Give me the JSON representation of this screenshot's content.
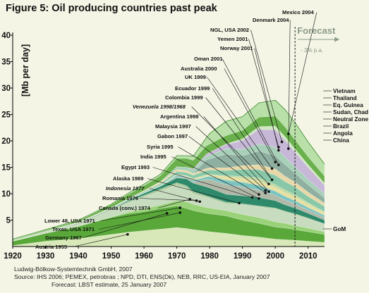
{
  "figure": {
    "title": "Figure 5: Oil producing countries past peak"
  },
  "chart_data": {
    "type": "area",
    "stacked": true,
    "title": "Figure 5: Oil producing countries past peak",
    "ylabel": "[Mb per day]",
    "xlabel": "",
    "xlim": [
      1920,
      2015
    ],
    "ylim": [
      0,
      40
    ],
    "x_ticks": [
      1920,
      1930,
      1940,
      1950,
      1960,
      1970,
      1980,
      1990,
      2000,
      2010
    ],
    "y_ticks": [
      5,
      10,
      15,
      20,
      25,
      30,
      35,
      40
    ],
    "grid": false,
    "forecast": {
      "label": "Forecast",
      "start_year": 2006,
      "decline_label": "- 3% p.a."
    },
    "x": [
      1920,
      1930,
      1940,
      1950,
      1955,
      1960,
      1965,
      1970,
      1973,
      1975,
      1979,
      1980,
      1985,
      1990,
      1995,
      2000,
      2003,
      2006,
      2010,
      2015
    ],
    "peak_annotations": [
      {
        "label": "Mexico 2004",
        "year": 2004,
        "italic": false
      },
      {
        "label": "Denmark 2004",
        "year": 2004,
        "italic": false
      },
      {
        "label": "NGL, USA 2002",
        "year": 2002,
        "italic": false
      },
      {
        "label": "Yemen 2001",
        "year": 2001,
        "italic": false
      },
      {
        "label": "Norway 2001",
        "year": 2001,
        "italic": false
      },
      {
        "label": "Oman 2001",
        "year": 2001,
        "italic": false
      },
      {
        "label": "Australia 2000",
        "year": 2000,
        "italic": false
      },
      {
        "label": "UK 1999",
        "year": 1999,
        "italic": false
      },
      {
        "label": "Ecuador 1999",
        "year": 1999,
        "italic": false
      },
      {
        "label": "Colombia 1999",
        "year": 1999,
        "italic": false
      },
      {
        "label": "Venezuela 1998/1968",
        "year": 1998,
        "italic": true
      },
      {
        "label": "Argentina 1998",
        "year": 1998,
        "italic": false
      },
      {
        "label": "Malaysia 1997",
        "year": 1997,
        "italic": false
      },
      {
        "label": "Gabon 1997",
        "year": 1997,
        "italic": false
      },
      {
        "label": "Syria 1995",
        "year": 1995,
        "italic": false
      },
      {
        "label": "India 1995",
        "year": 1995,
        "italic": false
      },
      {
        "label": "Egypt 1993",
        "year": 1993,
        "italic": false
      },
      {
        "label": "Alaska 1989",
        "year": 1989,
        "italic": false
      },
      {
        "label": "Indonesia 1977",
        "year": 1977,
        "italic": true
      },
      {
        "label": "Romania 1976",
        "year": 1976,
        "italic": false
      },
      {
        "label": "Canada (conv.) 1974",
        "year": 1974,
        "italic": false
      },
      {
        "label": "Lower 48, USA 1971",
        "year": 1971,
        "italic": false
      },
      {
        "label": "Texas, USA 1971",
        "year": 1971,
        "italic": false
      },
      {
        "label": "Germany 1967",
        "year": 1967,
        "italic": false
      },
      {
        "label": "Austria 1955",
        "year": 1955,
        "italic": false
      }
    ],
    "legend_right": [
      "Vietnam",
      "Thailand",
      "Eq. Guinea",
      "Sudan, Chad",
      "Neutral Zone",
      "Brazil",
      "Angola",
      "China",
      "GoM"
    ],
    "series": [
      {
        "name": "Texas, USA",
        "color": "#d8e8b8",
        "values": [
          0.2,
          1.0,
          1.5,
          2.3,
          2.7,
          3.0,
          3.3,
          3.6,
          3.4,
          3.2,
          2.9,
          2.8,
          2.5,
          2.1,
          1.8,
          1.4,
          1.3,
          1.2,
          1.0,
          0.8
        ]
      },
      {
        "name": "Lower 48, USA",
        "color": "#5aa83a",
        "values": [
          0.8,
          1.5,
          2.3,
          3.2,
          3.5,
          3.6,
          3.9,
          4.1,
          3.8,
          3.6,
          3.4,
          3.4,
          3.3,
          2.9,
          2.6,
          2.3,
          2.2,
          2.0,
          1.8,
          1.5
        ]
      },
      {
        "name": "Canada (conv.)",
        "color": "#9ad27a",
        "values": [
          0.0,
          0.0,
          0.0,
          0.1,
          0.3,
          0.5,
          0.7,
          1.0,
          1.3,
          1.2,
          1.1,
          1.1,
          1.0,
          1.1,
          1.1,
          1.0,
          0.9,
          0.8,
          0.7,
          0.5
        ]
      },
      {
        "name": "Venezuela",
        "color": "#c8dcc0",
        "values": [
          0.0,
          0.3,
          0.4,
          1.3,
          1.7,
          2.3,
          2.6,
          3.0,
          2.6,
          2.0,
          1.9,
          1.8,
          1.3,
          1.8,
          2.0,
          2.4,
          2.1,
          2.0,
          1.7,
          1.4
        ]
      },
      {
        "name": "Romania",
        "color": "#a8c898",
        "values": [
          0.1,
          0.1,
          0.2,
          0.2,
          0.3,
          0.3,
          0.4,
          0.4,
          0.4,
          0.4,
          0.3,
          0.3,
          0.3,
          0.2,
          0.2,
          0.2,
          0.2,
          0.2,
          0.2,
          0.1
        ]
      },
      {
        "name": "Indonesia",
        "color": "#2e8a6a",
        "values": [
          0.0,
          0.0,
          0.1,
          0.1,
          0.2,
          0.4,
          0.5,
          0.9,
          1.3,
          1.6,
          1.7,
          1.7,
          1.5,
          1.5,
          1.6,
          1.4,
          1.2,
          1.1,
          0.9,
          0.7
        ]
      },
      {
        "name": "Alaska",
        "color": "#b0b8a8",
        "values": [
          0.0,
          0.0,
          0.0,
          0.0,
          0.0,
          0.0,
          0.0,
          0.2,
          0.2,
          0.2,
          1.4,
          1.6,
          1.8,
          1.7,
          1.4,
          1.0,
          0.9,
          0.8,
          0.6,
          0.5
        ]
      },
      {
        "name": "Egypt",
        "color": "#7cc4c0",
        "values": [
          0.0,
          0.0,
          0.0,
          0.0,
          0.1,
          0.1,
          0.1,
          0.3,
          0.2,
          0.3,
          0.5,
          0.6,
          0.9,
          0.9,
          0.9,
          0.8,
          0.7,
          0.6,
          0.5,
          0.4
        ]
      },
      {
        "name": "India",
        "color": "#e8e0a0",
        "values": [
          0.0,
          0.0,
          0.0,
          0.0,
          0.0,
          0.0,
          0.1,
          0.1,
          0.1,
          0.2,
          0.2,
          0.2,
          0.6,
          0.7,
          0.8,
          0.7,
          0.7,
          0.7,
          0.6,
          0.5
        ]
      },
      {
        "name": "Syria",
        "color": "#c0d8a0",
        "values": [
          0.0,
          0.0,
          0.0,
          0.0,
          0.0,
          0.0,
          0.0,
          0.1,
          0.1,
          0.2,
          0.2,
          0.2,
          0.2,
          0.4,
          0.6,
          0.5,
          0.5,
          0.4,
          0.3,
          0.2
        ]
      },
      {
        "name": "Gabon / Malaysia / Argentina",
        "color": "#88c8a8",
        "values": [
          0.0,
          0.0,
          0.0,
          0.1,
          0.1,
          0.2,
          0.3,
          0.5,
          0.6,
          0.6,
          0.8,
          0.8,
          1.0,
          1.3,
          1.6,
          1.8,
          1.6,
          1.5,
          1.2,
          1.0
        ]
      },
      {
        "name": "Colombia / Ecuador",
        "color": "#e8d8a8",
        "values": [
          0.0,
          0.0,
          0.1,
          0.1,
          0.1,
          0.2,
          0.3,
          0.4,
          0.4,
          0.3,
          0.4,
          0.4,
          0.5,
          0.7,
          0.9,
          1.2,
          1.0,
          0.9,
          0.8,
          0.6
        ]
      },
      {
        "name": "UK",
        "color": "#8fb0a0",
        "values": [
          0.0,
          0.0,
          0.0,
          0.0,
          0.0,
          0.0,
          0.0,
          0.0,
          0.0,
          0.0,
          1.6,
          1.7,
          2.6,
          1.9,
          2.6,
          2.5,
          2.2,
          1.7,
          1.4,
          1.0
        ]
      },
      {
        "name": "Australia / Oman",
        "color": "#a8d0b8",
        "values": [
          0.0,
          0.0,
          0.0,
          0.0,
          0.0,
          0.0,
          0.1,
          0.5,
          0.6,
          0.7,
          0.7,
          0.7,
          1.0,
          1.2,
          1.3,
          1.6,
          1.4,
          1.2,
          1.0,
          0.8
        ]
      },
      {
        "name": "Norway",
        "color": "#c8b8d8",
        "values": [
          0.0,
          0.0,
          0.0,
          0.0,
          0.0,
          0.0,
          0.0,
          0.0,
          0.0,
          0.2,
          0.4,
          0.5,
          0.8,
          1.7,
          2.8,
          3.3,
          3.2,
          2.8,
          2.3,
          1.6
        ]
      },
      {
        "name": "Yemen / Denmark",
        "color": "#d0e8c0",
        "values": [
          0.0,
          0.0,
          0.0,
          0.0,
          0.0,
          0.0,
          0.0,
          0.0,
          0.0,
          0.0,
          0.0,
          0.0,
          0.1,
          0.3,
          0.5,
          0.7,
          0.7,
          0.6,
          0.5,
          0.4
        ]
      },
      {
        "name": "NGL, USA",
        "color": "#6ab04c",
        "values": [
          0.1,
          0.2,
          0.3,
          0.5,
          0.8,
          0.9,
          1.1,
          1.6,
          1.7,
          1.6,
          1.6,
          1.6,
          1.6,
          1.6,
          1.8,
          1.9,
          1.8,
          1.7,
          1.5,
          1.3
        ]
      },
      {
        "name": "Mexico",
        "color": "#b8e0a8",
        "values": [
          0.2,
          0.1,
          0.1,
          0.1,
          0.2,
          0.3,
          0.3,
          0.5,
          0.5,
          0.8,
          1.5,
          2.0,
          2.7,
          2.6,
          2.7,
          3.0,
          3.3,
          3.3,
          2.8,
          2.3
        ]
      }
    ]
  },
  "footer": {
    "line1": "Ludwig-Bölkow-Systemtechnik GmbH, 2007",
    "line2": "Source: IHS 2006; PEMEX, petrobras ;  NPD, DTI, ENS(Dk), NEB, RRC, US-EIA, January 2007",
    "line3": "Forecast: LBST estimate, 25 January 2007"
  },
  "colors": {
    "background": "#f5f5e6",
    "forecast_text": "#8a9a88",
    "axis": "#000000"
  }
}
